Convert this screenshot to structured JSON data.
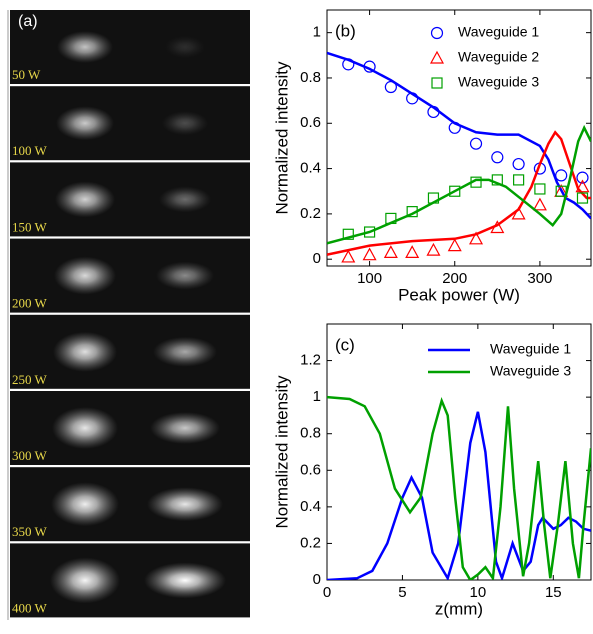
{
  "image_panel": {
    "label": "(a)",
    "frames": [
      "50 W",
      "100 W",
      "150 W",
      "200 W",
      "250 W",
      "300 W",
      "350 W",
      "400 W"
    ]
  },
  "chart_data": [
    {
      "type": "line",
      "panel_label": "(b)",
      "xlabel": "Peak power (W)",
      "ylabel": "Normalized intensity",
      "xlim": [
        50,
        360
      ],
      "ylim": [
        -0.03,
        1.1
      ],
      "xticks": [
        100,
        200,
        300
      ],
      "yticks": [
        0,
        0.2,
        0.4,
        0.6,
        0.8,
        1
      ],
      "legend": "upper right",
      "series": [
        {
          "name": "Waveguide 1",
          "color": "#0000ff",
          "marker": "circle",
          "x": [
            75,
            100,
            125,
            150,
            175,
            200,
            225,
            250,
            275,
            300,
            325,
            350
          ],
          "values": [
            0.86,
            0.85,
            0.76,
            0.71,
            0.65,
            0.58,
            0.51,
            0.45,
            0.42,
            0.4,
            0.37,
            0.36
          ],
          "fit_x": [
            50,
            75,
            100,
            125,
            150,
            175,
            200,
            225,
            250,
            275,
            300,
            310,
            320,
            330,
            340,
            350,
            360
          ],
          "fit_values": [
            0.91,
            0.88,
            0.84,
            0.79,
            0.73,
            0.67,
            0.6,
            0.56,
            0.55,
            0.55,
            0.5,
            0.44,
            0.34,
            0.27,
            0.25,
            0.22,
            0.18
          ]
        },
        {
          "name": "Waveguide 2",
          "color": "#ff0000",
          "marker": "triangle",
          "x": [
            75,
            100,
            125,
            150,
            175,
            200,
            225,
            250,
            275,
            300,
            325,
            350
          ],
          "values": [
            0.01,
            0.02,
            0.03,
            0.03,
            0.04,
            0.06,
            0.09,
            0.14,
            0.2,
            0.24,
            0.3,
            0.32
          ],
          "fit_x": [
            50,
            100,
            150,
            200,
            225,
            250,
            275,
            290,
            300,
            310,
            318,
            325,
            335,
            345,
            355,
            360
          ],
          "fit_values": [
            0.02,
            0.06,
            0.08,
            0.09,
            0.11,
            0.15,
            0.22,
            0.32,
            0.42,
            0.51,
            0.56,
            0.53,
            0.42,
            0.31,
            0.27,
            0.27
          ]
        },
        {
          "name": "Waveguide 3",
          "color": "#00a000",
          "marker": "square",
          "x": [
            75,
            100,
            125,
            150,
            175,
            200,
            225,
            250,
            275,
            300,
            325,
            350
          ],
          "values": [
            0.11,
            0.12,
            0.18,
            0.21,
            0.27,
            0.3,
            0.34,
            0.35,
            0.35,
            0.31,
            0.3,
            0.27
          ],
          "fit_x": [
            50,
            100,
            150,
            200,
            225,
            240,
            260,
            280,
            300,
            315,
            325,
            335,
            345,
            352,
            360
          ],
          "fit_values": [
            0.07,
            0.12,
            0.2,
            0.3,
            0.35,
            0.35,
            0.32,
            0.26,
            0.2,
            0.15,
            0.2,
            0.35,
            0.52,
            0.58,
            0.52
          ]
        }
      ]
    },
    {
      "type": "line",
      "panel_label": "(c)",
      "xlabel": "z(mm)",
      "ylabel": "Normalized intensity",
      "xlim": [
        0,
        17.5
      ],
      "ylim": [
        0,
        1.4
      ],
      "xticks": [
        0,
        5,
        10,
        15
      ],
      "yticks": [
        0,
        0.2,
        0.4,
        0.6,
        0.8,
        1,
        1.2
      ],
      "legend": "upper right",
      "series": [
        {
          "name": "Waveguide 1",
          "color": "#0000ff",
          "x": [
            0,
            2,
            3,
            4,
            5,
            5.6,
            6.3,
            7,
            8,
            8.7,
            9.5,
            10,
            10.5,
            11.2,
            11.6,
            12.3,
            13,
            13.5,
            14,
            14.3,
            15,
            15.5,
            16,
            16.5,
            17,
            17.5
          ],
          "values": [
            0,
            0.01,
            0.05,
            0.2,
            0.45,
            0.56,
            0.45,
            0.15,
            0.01,
            0.2,
            0.75,
            0.92,
            0.7,
            0.1,
            0.01,
            0.2,
            0.05,
            0.1,
            0.3,
            0.34,
            0.28,
            0.3,
            0.34,
            0.32,
            0.28,
            0.27
          ]
        },
        {
          "name": "Waveguide 3",
          "color": "#00a000",
          "x": [
            0,
            1.5,
            2.5,
            3.5,
            4.5,
            5.5,
            6.2,
            7,
            7.6,
            8,
            8.5,
            9,
            9.5,
            10,
            10.5,
            11,
            11.5,
            12,
            12.4,
            13,
            13.4,
            14,
            14.4,
            14.8,
            15.3,
            15.8,
            16.3,
            16.7,
            17,
            17.5
          ],
          "values": [
            1,
            0.99,
            0.95,
            0.8,
            0.5,
            0.37,
            0.45,
            0.8,
            0.98,
            0.9,
            0.45,
            0.07,
            0,
            0.03,
            0.07,
            0.01,
            0.4,
            0.95,
            0.5,
            0.02,
            0.2,
            0.65,
            0.3,
            0.01,
            0.3,
            0.65,
            0.2,
            0.01,
            0.3,
            0.72
          ]
        }
      ]
    }
  ]
}
